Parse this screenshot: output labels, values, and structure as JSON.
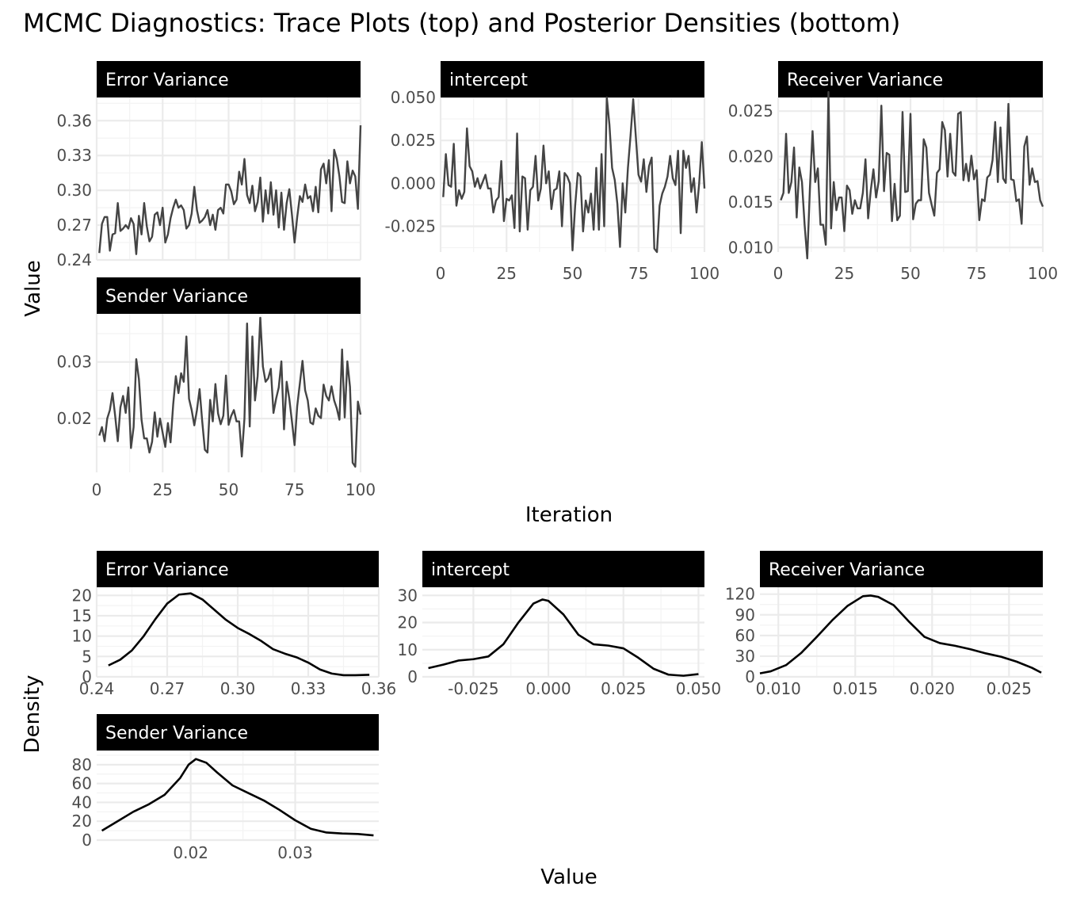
{
  "title": "MCMC Diagnostics: Trace Plots (top) and Posterior Densities (bottom)",
  "trace_section": {
    "xlabel": "Iteration",
    "ylabel": "Value"
  },
  "density_section": {
    "xlabel": "Value",
    "ylabel": "Density"
  },
  "chart_data": [
    {
      "type": "line",
      "group": "trace",
      "panel": "Error Variance",
      "title": "Error Variance",
      "xlim": [
        0,
        100
      ],
      "ylim": [
        0.24,
        0.38
      ],
      "xticks": [
        0,
        25,
        50,
        75,
        100
      ],
      "xtick_labels": [
        "",
        "",
        "",
        "",
        ""
      ],
      "yticks": [
        0.24,
        0.27,
        0.3,
        0.33,
        0.36
      ],
      "ytick_labels": [
        "0.24",
        "0.27",
        "0.30",
        "0.33",
        "0.36"
      ],
      "x": [
        1,
        2,
        3,
        4,
        5,
        6,
        7,
        8,
        9,
        10,
        11,
        12,
        13,
        14,
        15,
        16,
        17,
        18,
        19,
        20,
        21,
        22,
        23,
        24,
        25,
        26,
        27,
        28,
        29,
        30,
        31,
        32,
        33,
        34,
        35,
        36,
        37,
        38,
        39,
        40,
        41,
        42,
        43,
        44,
        45,
        46,
        47,
        48,
        49,
        50,
        51,
        52,
        53,
        54,
        55,
        56,
        57,
        58,
        59,
        60,
        61,
        62,
        63,
        64,
        65,
        66,
        67,
        68,
        69,
        70,
        71,
        72,
        73,
        74,
        75,
        76,
        77,
        78,
        79,
        80,
        81,
        82,
        83,
        84,
        85,
        86,
        87,
        88,
        89,
        90,
        91,
        92,
        93,
        94,
        95,
        96,
        97,
        98,
        99,
        100
      ],
      "y": [
        0.246,
        0.271,
        0.277,
        0.277,
        0.248,
        0.262,
        0.263,
        0.289,
        0.265,
        0.267,
        0.27,
        0.267,
        0.276,
        0.271,
        0.245,
        0.278,
        0.262,
        0.289,
        0.269,
        0.256,
        0.26,
        0.279,
        0.281,
        0.27,
        0.285,
        0.255,
        0.262,
        0.276,
        0.285,
        0.292,
        0.285,
        0.287,
        0.283,
        0.267,
        0.27,
        0.28,
        0.303,
        0.283,
        0.272,
        0.274,
        0.277,
        0.283,
        0.27,
        0.279,
        0.266,
        0.283,
        0.285,
        0.28,
        0.305,
        0.305,
        0.299,
        0.288,
        0.292,
        0.316,
        0.305,
        0.327,
        0.296,
        0.289,
        0.304,
        0.282,
        0.29,
        0.311,
        0.273,
        0.3,
        0.28,
        0.307,
        0.279,
        0.3,
        0.268,
        0.298,
        0.266,
        0.289,
        0.301,
        0.279,
        0.255,
        0.277,
        0.295,
        0.29,
        0.305,
        0.293,
        0.295,
        0.282,
        0.303,
        0.281,
        0.318,
        0.323,
        0.306,
        0.326,
        0.282,
        0.335,
        0.327,
        0.312,
        0.29,
        0.289,
        0.325,
        0.306,
        0.317,
        0.312,
        0.284,
        0.356
      ]
    },
    {
      "type": "line",
      "group": "trace",
      "panel": "intercept",
      "title": "intercept",
      "xlim": [
        0,
        100
      ],
      "ylim": [
        -0.04,
        0.05
      ],
      "xticks": [
        0,
        25,
        50,
        75,
        100
      ],
      "xtick_labels": [
        "0",
        "25",
        "50",
        "75",
        "100"
      ],
      "yticks": [
        -0.025,
        0.0,
        0.025,
        0.05
      ],
      "ytick_labels": [
        "-0.025",
        "0.000",
        "0.025",
        "0.050"
      ],
      "x": [
        1,
        2,
        3,
        4,
        5,
        6,
        7,
        8,
        9,
        10,
        11,
        12,
        13,
        14,
        15,
        16,
        17,
        18,
        19,
        20,
        21,
        22,
        23,
        24,
        25,
        26,
        27,
        28,
        29,
        30,
        31,
        32,
        33,
        34,
        35,
        36,
        37,
        38,
        39,
        40,
        41,
        42,
        43,
        44,
        45,
        46,
        47,
        48,
        49,
        50,
        51,
        52,
        53,
        54,
        55,
        56,
        57,
        58,
        59,
        60,
        61,
        62,
        63,
        64,
        65,
        66,
        67,
        68,
        69,
        70,
        71,
        72,
        73,
        74,
        75,
        76,
        77,
        78,
        79,
        80,
        81,
        82,
        83,
        84,
        85,
        86,
        87,
        88,
        89,
        90,
        91,
        92,
        93,
        94,
        95,
        96,
        97,
        98,
        99,
        100
      ],
      "y": [
        -0.008,
        0.017,
        -0.001,
        -0.002,
        0.023,
        -0.013,
        -0.004,
        -0.009,
        -0.005,
        0.032,
        0.01,
        0.007,
        -0.002,
        0.003,
        -0.003,
        0.001,
        0.005,
        -0.003,
        -0.003,
        -0.017,
        -0.01,
        -0.008,
        0.013,
        -0.022,
        -0.009,
        -0.01,
        -0.007,
        -0.026,
        0.029,
        -0.028,
        0.004,
        0.003,
        -0.027,
        -0.004,
        -0.002,
        0.016,
        -0.01,
        -0.003,
        0.022,
        0.0,
        0.007,
        -0.015,
        -0.004,
        -0.003,
        0.007,
        -0.025,
        0.006,
        0.004,
        0.0,
        -0.039,
        -0.013,
        0.006,
        0.004,
        -0.028,
        -0.01,
        -0.017,
        -0.006,
        -0.027,
        0.009,
        -0.027,
        0.017,
        -0.025,
        0.05,
        0.034,
        0.009,
        0.002,
        -0.012,
        -0.037,
        0.0,
        -0.017,
        0.009,
        0.028,
        0.049,
        0.027,
        0.005,
        0.001,
        0.014,
        -0.005,
        0.01,
        0.015,
        -0.038,
        -0.04,
        -0.013,
        -0.006,
        -0.002,
        0.004,
        0.016,
        0.003,
        -0.001,
        0.019,
        -0.029,
        0.019,
        0.009,
        0.016,
        -0.005,
        0.003,
        -0.017,
        0.0,
        0.024,
        -0.003
      ]
    },
    {
      "type": "line",
      "group": "trace",
      "panel": "Receiver Variance",
      "title": "Receiver Variance",
      "xlim": [
        0,
        100
      ],
      "ylim": [
        0.0095,
        0.0265
      ],
      "xticks": [
        0,
        25,
        50,
        75,
        100
      ],
      "xtick_labels": [
        "0",
        "25",
        "50",
        "75",
        "100"
      ],
      "yticks": [
        0.01,
        0.015,
        0.02,
        0.025
      ],
      "ytick_labels": [
        "0.010",
        "0.015",
        "0.020",
        "0.025"
      ],
      "x": [
        1,
        2,
        3,
        4,
        5,
        6,
        7,
        8,
        9,
        10,
        11,
        12,
        13,
        14,
        15,
        16,
        17,
        18,
        19,
        20,
        21,
        22,
        23,
        24,
        25,
        26,
        27,
        28,
        29,
        30,
        31,
        32,
        33,
        34,
        35,
        36,
        37,
        38,
        39,
        40,
        41,
        42,
        43,
        44,
        45,
        46,
        47,
        48,
        49,
        50,
        51,
        52,
        53,
        54,
        55,
        56,
        57,
        58,
        59,
        60,
        61,
        62,
        63,
        64,
        65,
        66,
        67,
        68,
        69,
        70,
        71,
        72,
        73,
        74,
        75,
        76,
        77,
        78,
        79,
        80,
        81,
        82,
        83,
        84,
        85,
        86,
        87,
        88,
        89,
        90,
        91,
        92,
        93,
        94,
        95,
        96,
        97,
        98,
        99,
        100
      ],
      "y": [
        0.0152,
        0.016,
        0.0225,
        0.016,
        0.0172,
        0.021,
        0.0133,
        0.0188,
        0.0172,
        0.0125,
        0.0088,
        0.0165,
        0.0228,
        0.0172,
        0.0187,
        0.0125,
        0.0125,
        0.0103,
        0.0271,
        0.0121,
        0.0172,
        0.0141,
        0.0155,
        0.0155,
        0.0118,
        0.0168,
        0.0163,
        0.0137,
        0.0152,
        0.0143,
        0.0143,
        0.016,
        0.0197,
        0.0132,
        0.0163,
        0.0186,
        0.0155,
        0.0173,
        0.0256,
        0.0162,
        0.0204,
        0.0202,
        0.0129,
        0.017,
        0.013,
        0.0135,
        0.0249,
        0.0161,
        0.0162,
        0.0247,
        0.0131,
        0.0148,
        0.0152,
        0.0152,
        0.0219,
        0.021,
        0.016,
        0.0147,
        0.0135,
        0.0182,
        0.0186,
        0.0238,
        0.0229,
        0.0178,
        0.0225,
        0.0183,
        0.0179,
        0.0247,
        0.0249,
        0.0174,
        0.0192,
        0.0173,
        0.0201,
        0.0175,
        0.0185,
        0.013,
        0.0153,
        0.0151,
        0.0177,
        0.018,
        0.0196,
        0.0238,
        0.0172,
        0.0232,
        0.0176,
        0.0171,
        0.0258,
        0.0175,
        0.0174,
        0.0151,
        0.0153,
        0.0126,
        0.0211,
        0.0222,
        0.0169,
        0.0187,
        0.0172,
        0.0173,
        0.0152,
        0.0145
      ]
    },
    {
      "type": "line",
      "group": "trace",
      "panel": "Sender Variance",
      "title": "Sender Variance",
      "xlim": [
        0,
        100
      ],
      "ylim": [
        0.0105,
        0.0385
      ],
      "xticks": [
        0,
        25,
        50,
        75,
        100
      ],
      "xtick_labels": [
        "0",
        "25",
        "50",
        "75",
        "100"
      ],
      "yticks": [
        0.02,
        0.03
      ],
      "ytick_labels": [
        "0.02",
        "0.03"
      ],
      "x": [
        1,
        2,
        3,
        4,
        5,
        6,
        7,
        8,
        9,
        10,
        11,
        12,
        13,
        14,
        15,
        16,
        17,
        18,
        19,
        20,
        21,
        22,
        23,
        24,
        25,
        26,
        27,
        28,
        29,
        30,
        31,
        32,
        33,
        34,
        35,
        36,
        37,
        38,
        39,
        40,
        41,
        42,
        43,
        44,
        45,
        46,
        47,
        48,
        49,
        50,
        51,
        52,
        53,
        54,
        55,
        56,
        57,
        58,
        59,
        60,
        61,
        62,
        63,
        64,
        65,
        66,
        67,
        68,
        69,
        70,
        71,
        72,
        73,
        74,
        75,
        76,
        77,
        78,
        79,
        80,
        81,
        82,
        83,
        84,
        85,
        86,
        87,
        88,
        89,
        90,
        91,
        92,
        93,
        94,
        95,
        96,
        97,
        98,
        99,
        100
      ],
      "y": [
        0.017,
        0.0185,
        0.016,
        0.02,
        0.0215,
        0.0245,
        0.0205,
        0.016,
        0.022,
        0.024,
        0.021,
        0.0255,
        0.0148,
        0.0185,
        0.0305,
        0.027,
        0.0198,
        0.0165,
        0.0165,
        0.014,
        0.0159,
        0.0211,
        0.0168,
        0.02,
        0.0175,
        0.015,
        0.0192,
        0.0158,
        0.0225,
        0.0275,
        0.0245,
        0.028,
        0.0265,
        0.0345,
        0.0235,
        0.0215,
        0.0188,
        0.0215,
        0.0252,
        0.0195,
        0.0145,
        0.014,
        0.0233,
        0.0195,
        0.0261,
        0.0209,
        0.019,
        0.0205,
        0.0276,
        0.0189,
        0.0205,
        0.0215,
        0.0195,
        0.0195,
        0.0133,
        0.02,
        0.0368,
        0.0186,
        0.0345,
        0.0232,
        0.0275,
        0.0378,
        0.0292,
        0.0265,
        0.0271,
        0.0288,
        0.021,
        0.0235,
        0.0255,
        0.0301,
        0.0181,
        0.0265,
        0.0235,
        0.0195,
        0.0153,
        0.0222,
        0.0262,
        0.0302,
        0.025,
        0.0232,
        0.0193,
        0.019,
        0.0218,
        0.0205,
        0.0201,
        0.026,
        0.024,
        0.0232,
        0.0257,
        0.0232,
        0.0218,
        0.0198,
        0.0322,
        0.0202,
        0.0301,
        0.0256,
        0.0122,
        0.0115,
        0.023,
        0.0207
      ]
    },
    {
      "type": "area",
      "group": "density",
      "panel": "Error Variance",
      "title": "Error Variance",
      "xlim": [
        0.24,
        0.36
      ],
      "ylim": [
        0,
        22
      ],
      "xticks": [
        0.24,
        0.27,
        0.3,
        0.33,
        0.36
      ],
      "xtick_labels": [
        "0.24",
        "0.27",
        "0.30",
        "0.33",
        "0.36"
      ],
      "yticks": [
        0,
        5,
        10,
        15,
        20
      ],
      "ytick_labels": [
        "0",
        "5",
        "10",
        "15",
        "20"
      ],
      "x": [
        0.245,
        0.25,
        0.255,
        0.26,
        0.265,
        0.27,
        0.275,
        0.28,
        0.285,
        0.29,
        0.295,
        0.3,
        0.305,
        0.31,
        0.315,
        0.32,
        0.325,
        0.33,
        0.335,
        0.34,
        0.345,
        0.35,
        0.356
      ],
      "y": [
        2.8,
        4.2,
        6.5,
        10.0,
        14.2,
        18.0,
        20.2,
        20.5,
        19.0,
        16.5,
        14.0,
        12.0,
        10.5,
        8.8,
        6.8,
        5.7,
        4.8,
        3.5,
        1.8,
        0.8,
        0.4,
        0.4,
        0.5
      ]
    },
    {
      "type": "area",
      "group": "density",
      "panel": "intercept",
      "title": "intercept",
      "xlim": [
        -0.042,
        0.052
      ],
      "ylim": [
        0,
        33
      ],
      "xticks": [
        -0.025,
        0.0,
        0.025,
        0.05
      ],
      "xtick_labels": [
        "-0.025",
        "0.000",
        "0.025",
        "0.050"
      ],
      "yticks": [
        0,
        10,
        20,
        30
      ],
      "ytick_labels": [
        "0",
        "10",
        "20",
        "30"
      ],
      "x": [
        -0.04,
        -0.035,
        -0.03,
        -0.025,
        -0.02,
        -0.015,
        -0.01,
        -0.005,
        -0.002,
        0.0,
        0.005,
        0.01,
        0.015,
        0.02,
        0.025,
        0.03,
        0.035,
        0.04,
        0.045,
        0.05
      ],
      "y": [
        3.2,
        4.5,
        6.0,
        6.5,
        7.5,
        12.0,
        20.0,
        27.0,
        28.5,
        28.0,
        23.0,
        15.5,
        12.0,
        11.5,
        10.5,
        7.0,
        3.0,
        0.8,
        0.4,
        1.0
      ]
    },
    {
      "type": "area",
      "group": "density",
      "panel": "Receiver Variance",
      "title": "Receiver Variance",
      "xlim": [
        0.0088,
        0.0272
      ],
      "ylim": [
        0,
        130
      ],
      "xticks": [
        0.01,
        0.015,
        0.02,
        0.025
      ],
      "xtick_labels": [
        "0.010",
        "0.015",
        "0.020",
        "0.025"
      ],
      "yticks": [
        0,
        30,
        60,
        90,
        120
      ],
      "ytick_labels": [
        "0",
        "30",
        "60",
        "90",
        "120"
      ],
      "x": [
        0.0088,
        0.0095,
        0.0105,
        0.0115,
        0.0125,
        0.0135,
        0.0145,
        0.0155,
        0.016,
        0.0165,
        0.0175,
        0.0185,
        0.0195,
        0.0205,
        0.0215,
        0.0225,
        0.0235,
        0.0245,
        0.0255,
        0.0265,
        0.0271
      ],
      "y": [
        5,
        8,
        17,
        35,
        58,
        82,
        103,
        117,
        118,
        116,
        104,
        80,
        58,
        49,
        45,
        40,
        34,
        29,
        22,
        13,
        6
      ]
    },
    {
      "type": "area",
      "group": "density",
      "panel": "Sender Variance",
      "title": "Sender Variance",
      "xlim": [
        0.011,
        0.038
      ],
      "ylim": [
        0,
        95
      ],
      "xticks": [
        0.02,
        0.03
      ],
      "xtick_labels": [
        "0.02",
        "0.03"
      ],
      "yticks": [
        0,
        20,
        40,
        60,
        80
      ],
      "ytick_labels": [
        "0",
        "20",
        "40",
        "60",
        "80"
      ],
      "x": [
        0.0115,
        0.013,
        0.0145,
        0.016,
        0.0175,
        0.019,
        0.0198,
        0.0205,
        0.0215,
        0.0225,
        0.024,
        0.0255,
        0.027,
        0.0285,
        0.03,
        0.0315,
        0.033,
        0.0345,
        0.036,
        0.0375
      ],
      "y": [
        10,
        20,
        30,
        38,
        48,
        66,
        80,
        86,
        82,
        72,
        58,
        50,
        42,
        32,
        21,
        12,
        8,
        7,
        6.5,
        5
      ]
    }
  ]
}
